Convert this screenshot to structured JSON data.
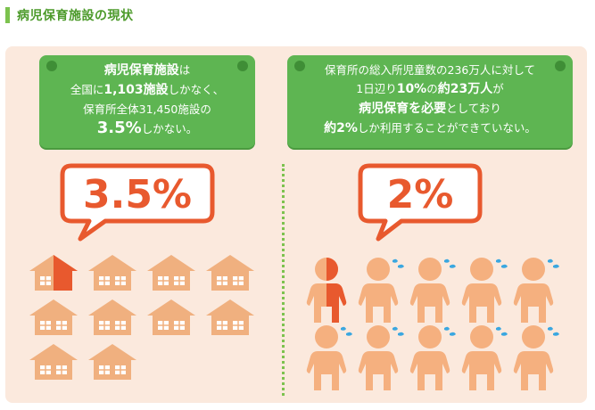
{
  "header": {
    "title": "病児保育施設の現状"
  },
  "left": {
    "box_lines": [
      [
        {
          "t": "病児保育施設",
          "s": "b"
        },
        {
          "t": "は",
          "s": ""
        }
      ],
      [
        {
          "t": "全国に",
          "s": ""
        },
        {
          "t": "1,103施設",
          "s": "b"
        },
        {
          "t": "しかなく、",
          "s": ""
        }
      ],
      [
        {
          "t": "保育所全体31,450施設の",
          "s": ""
        }
      ],
      [
        {
          "t": "3.5%",
          "s": "big"
        },
        {
          "t": "しかない。",
          "s": ""
        }
      ]
    ],
    "stat": "3.5%",
    "icon_names": {
      "house": "house-icon"
    }
  },
  "right": {
    "box_lines": [
      [
        {
          "t": "保育所の総入所児童数の236万人に対して",
          "s": ""
        }
      ],
      [
        {
          "t": "1日辺り",
          "s": ""
        },
        {
          "t": "10%",
          "s": "b"
        },
        {
          "t": "の",
          "s": ""
        },
        {
          "t": "約23万人",
          "s": "b"
        },
        {
          "t": "が",
          "s": ""
        }
      ],
      [
        {
          "t": "病児保育を必要",
          "s": "b"
        },
        {
          "t": "としており",
          "s": ""
        }
      ],
      [
        {
          "t": "約2%",
          "s": "b"
        },
        {
          "t": "しか利用することができていない。",
          "s": ""
        }
      ]
    ],
    "stat": "2%",
    "icon_names": {
      "child": "child-icon",
      "sweat": "sweat-drop-icon"
    }
  },
  "colors": {
    "panel_bg": "#fbe9dd",
    "green": "#5eb552",
    "accent_orange": "#e8592e",
    "house": "#f0b07f",
    "house_highlight": "#e8592e",
    "child": "#f5b07f",
    "sweat": "#3aa7e0"
  },
  "houses": {
    "total": 10,
    "highlighted_fraction": 0.5
  },
  "children": {
    "total": 10,
    "highlighted_fraction": 0.5
  }
}
